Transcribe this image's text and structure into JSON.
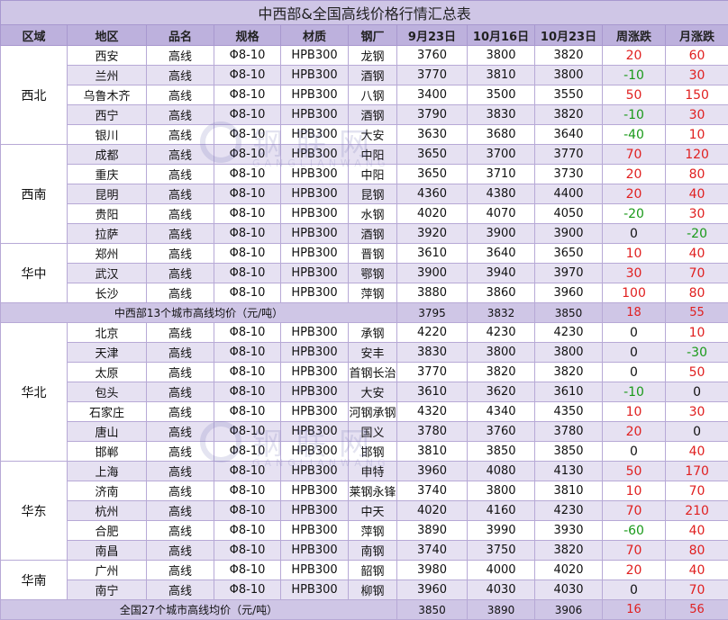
{
  "title": "中西部&全国高线价格行情汇总表",
  "headers": [
    "区域",
    "地区",
    "品名",
    "规格",
    "材质",
    "钢厂",
    "9月23日",
    "10月16日",
    "10月23日",
    "周涨跌",
    "月涨跌"
  ],
  "watermark": {
    "cn": "钢联网",
    "en": "GANGLIANWANG"
  },
  "colors": {
    "header_bg": "#bdb1dd",
    "title_bg": "#cfc6e6",
    "alt_row": "#e6e1f2",
    "up": "#e02020",
    "down": "#1a9a1a"
  },
  "regions": [
    {
      "name": "西北",
      "rows": [
        {
          "city": "西安",
          "product": "高线",
          "spec": "Φ8-10",
          "material": "HPB300",
          "mill": "龙钢",
          "p1": "3760",
          "p2": "3800",
          "p3": "3820",
          "wk": "20",
          "mo": "60"
        },
        {
          "city": "兰州",
          "product": "高线",
          "spec": "Φ8-10",
          "material": "HPB300",
          "mill": "酒钢",
          "p1": "3770",
          "p2": "3810",
          "p3": "3800",
          "wk": "-10",
          "mo": "30"
        },
        {
          "city": "乌鲁木齐",
          "product": "高线",
          "spec": "Φ8-10",
          "material": "HPB300",
          "mill": "八钢",
          "p1": "3400",
          "p2": "3500",
          "p3": "3550",
          "wk": "50",
          "mo": "150"
        },
        {
          "city": "西宁",
          "product": "高线",
          "spec": "Φ8-10",
          "material": "HPB300",
          "mill": "酒钢",
          "p1": "3790",
          "p2": "3830",
          "p3": "3820",
          "wk": "-10",
          "mo": "30"
        },
        {
          "city": "银川",
          "product": "高线",
          "spec": "Φ8-10",
          "material": "HPB300",
          "mill": "大安",
          "p1": "3630",
          "p2": "3680",
          "p3": "3640",
          "wk": "-40",
          "mo": "10"
        }
      ]
    },
    {
      "name": "西南",
      "rows": [
        {
          "city": "成都",
          "product": "高线",
          "spec": "Φ8-10",
          "material": "HPB300",
          "mill": "中阳",
          "p1": "3650",
          "p2": "3700",
          "p3": "3770",
          "wk": "70",
          "mo": "120"
        },
        {
          "city": "重庆",
          "product": "高线",
          "spec": "Φ8-10",
          "material": "HPB300",
          "mill": "中阳",
          "p1": "3650",
          "p2": "3710",
          "p3": "3730",
          "wk": "20",
          "mo": "80"
        },
        {
          "city": "昆明",
          "product": "高线",
          "spec": "Φ8-10",
          "material": "HPB300",
          "mill": "昆钢",
          "p1": "4360",
          "p2": "4380",
          "p3": "4400",
          "wk": "20",
          "mo": "40"
        },
        {
          "city": "贵阳",
          "product": "高线",
          "spec": "Φ8-10",
          "material": "HPB300",
          "mill": "水钢",
          "p1": "4020",
          "p2": "4070",
          "p3": "4050",
          "wk": "-20",
          "mo": "30"
        },
        {
          "city": "拉萨",
          "product": "高线",
          "spec": "Φ8-10",
          "material": "HPB300",
          "mill": "酒钢",
          "p1": "3920",
          "p2": "3900",
          "p3": "3900",
          "wk": "0",
          "mo": "-20"
        }
      ]
    },
    {
      "name": "华中",
      "rows": [
        {
          "city": "郑州",
          "product": "高线",
          "spec": "Φ8-10",
          "material": "HPB300",
          "mill": "晋钢",
          "p1": "3610",
          "p2": "3640",
          "p3": "3650",
          "wk": "10",
          "mo": "40"
        },
        {
          "city": "武汉",
          "product": "高线",
          "spec": "Φ8-10",
          "material": "HPB300",
          "mill": "鄂钢",
          "p1": "3900",
          "p2": "3940",
          "p3": "3970",
          "wk": "30",
          "mo": "70"
        },
        {
          "city": "长沙",
          "product": "高线",
          "spec": "Φ8-10",
          "material": "HPB300",
          "mill": "萍钢",
          "p1": "3880",
          "p2": "3860",
          "p3": "3960",
          "wk": "100",
          "mo": "80"
        }
      ]
    }
  ],
  "avg1": {
    "label": "中西部13个城市高线均价（元/吨）",
    "p1": "3795",
    "p2": "3832",
    "p3": "3850",
    "wk": "18",
    "mo": "55"
  },
  "regions2": [
    {
      "name": "华北",
      "rows": [
        {
          "city": "北京",
          "product": "高线",
          "spec": "Φ8-10",
          "material": "HPB300",
          "mill": "承钢",
          "p1": "4220",
          "p2": "4230",
          "p3": "4230",
          "wk": "0",
          "mo": "10"
        },
        {
          "city": "天津",
          "product": "高线",
          "spec": "Φ8-10",
          "material": "HPB300",
          "mill": "安丰",
          "p1": "3830",
          "p2": "3800",
          "p3": "3800",
          "wk": "0",
          "mo": "-30"
        },
        {
          "city": "太原",
          "product": "高线",
          "spec": "Φ8-10",
          "material": "HPB300",
          "mill": "首钢长治",
          "p1": "3770",
          "p2": "3820",
          "p3": "3820",
          "wk": "0",
          "mo": "50"
        },
        {
          "city": "包头",
          "product": "高线",
          "spec": "Φ8-10",
          "material": "HPB300",
          "mill": "大安",
          "p1": "3610",
          "p2": "3620",
          "p3": "3610",
          "wk": "-10",
          "mo": "0"
        },
        {
          "city": "石家庄",
          "product": "高线",
          "spec": "Φ8-10",
          "material": "HPB300",
          "mill": "河钢承钢",
          "p1": "4320",
          "p2": "4340",
          "p3": "4350",
          "wk": "10",
          "mo": "30"
        },
        {
          "city": "唐山",
          "product": "高线",
          "spec": "Φ8-10",
          "material": "HPB300",
          "mill": "国义",
          "p1": "3780",
          "p2": "3760",
          "p3": "3780",
          "wk": "20",
          "mo": "0"
        },
        {
          "city": "邯郸",
          "product": "高线",
          "spec": "Φ8-10",
          "material": "HPB300",
          "mill": "邯钢",
          "p1": "3810",
          "p2": "3850",
          "p3": "3850",
          "wk": "0",
          "mo": "40"
        }
      ]
    },
    {
      "name": "华东",
      "rows": [
        {
          "city": "上海",
          "product": "高线",
          "spec": "Φ8-10",
          "material": "HPB300",
          "mill": "申特",
          "p1": "3960",
          "p2": "4080",
          "p3": "4130",
          "wk": "50",
          "mo": "170"
        },
        {
          "city": "济南",
          "product": "高线",
          "spec": "Φ8-10",
          "material": "HPB300",
          "mill": "莱钢永锋",
          "p1": "3740",
          "p2": "3800",
          "p3": "3810",
          "wk": "10",
          "mo": "70"
        },
        {
          "city": "杭州",
          "product": "高线",
          "spec": "Φ8-10",
          "material": "HPB300",
          "mill": "中天",
          "p1": "4020",
          "p2": "4160",
          "p3": "4230",
          "wk": "70",
          "mo": "210"
        },
        {
          "city": "合肥",
          "product": "高线",
          "spec": "Φ8-10",
          "material": "HPB300",
          "mill": "萍钢",
          "p1": "3890",
          "p2": "3990",
          "p3": "3930",
          "wk": "-60",
          "mo": "40"
        },
        {
          "city": "南昌",
          "product": "高线",
          "spec": "Φ8-10",
          "material": "HPB300",
          "mill": "南钢",
          "p1": "3740",
          "p2": "3750",
          "p3": "3820",
          "wk": "70",
          "mo": "80"
        }
      ]
    },
    {
      "name": "华南",
      "rows": [
        {
          "city": "广州",
          "product": "高线",
          "spec": "Φ8-10",
          "material": "HPB300",
          "mill": "韶钢",
          "p1": "3980",
          "p2": "4000",
          "p3": "4020",
          "wk": "20",
          "mo": "40"
        },
        {
          "city": "南宁",
          "product": "高线",
          "spec": "Φ8-10",
          "material": "HPB300",
          "mill": "柳钢",
          "p1": "3960",
          "p2": "4030",
          "p3": "4030",
          "wk": "0",
          "mo": "70"
        }
      ]
    }
  ],
  "avg2": {
    "label": "全国27个城市高线均价（元/吨）",
    "p1": "3850",
    "p2": "3890",
    "p3": "3906",
    "wk": "16",
    "mo": "56"
  }
}
